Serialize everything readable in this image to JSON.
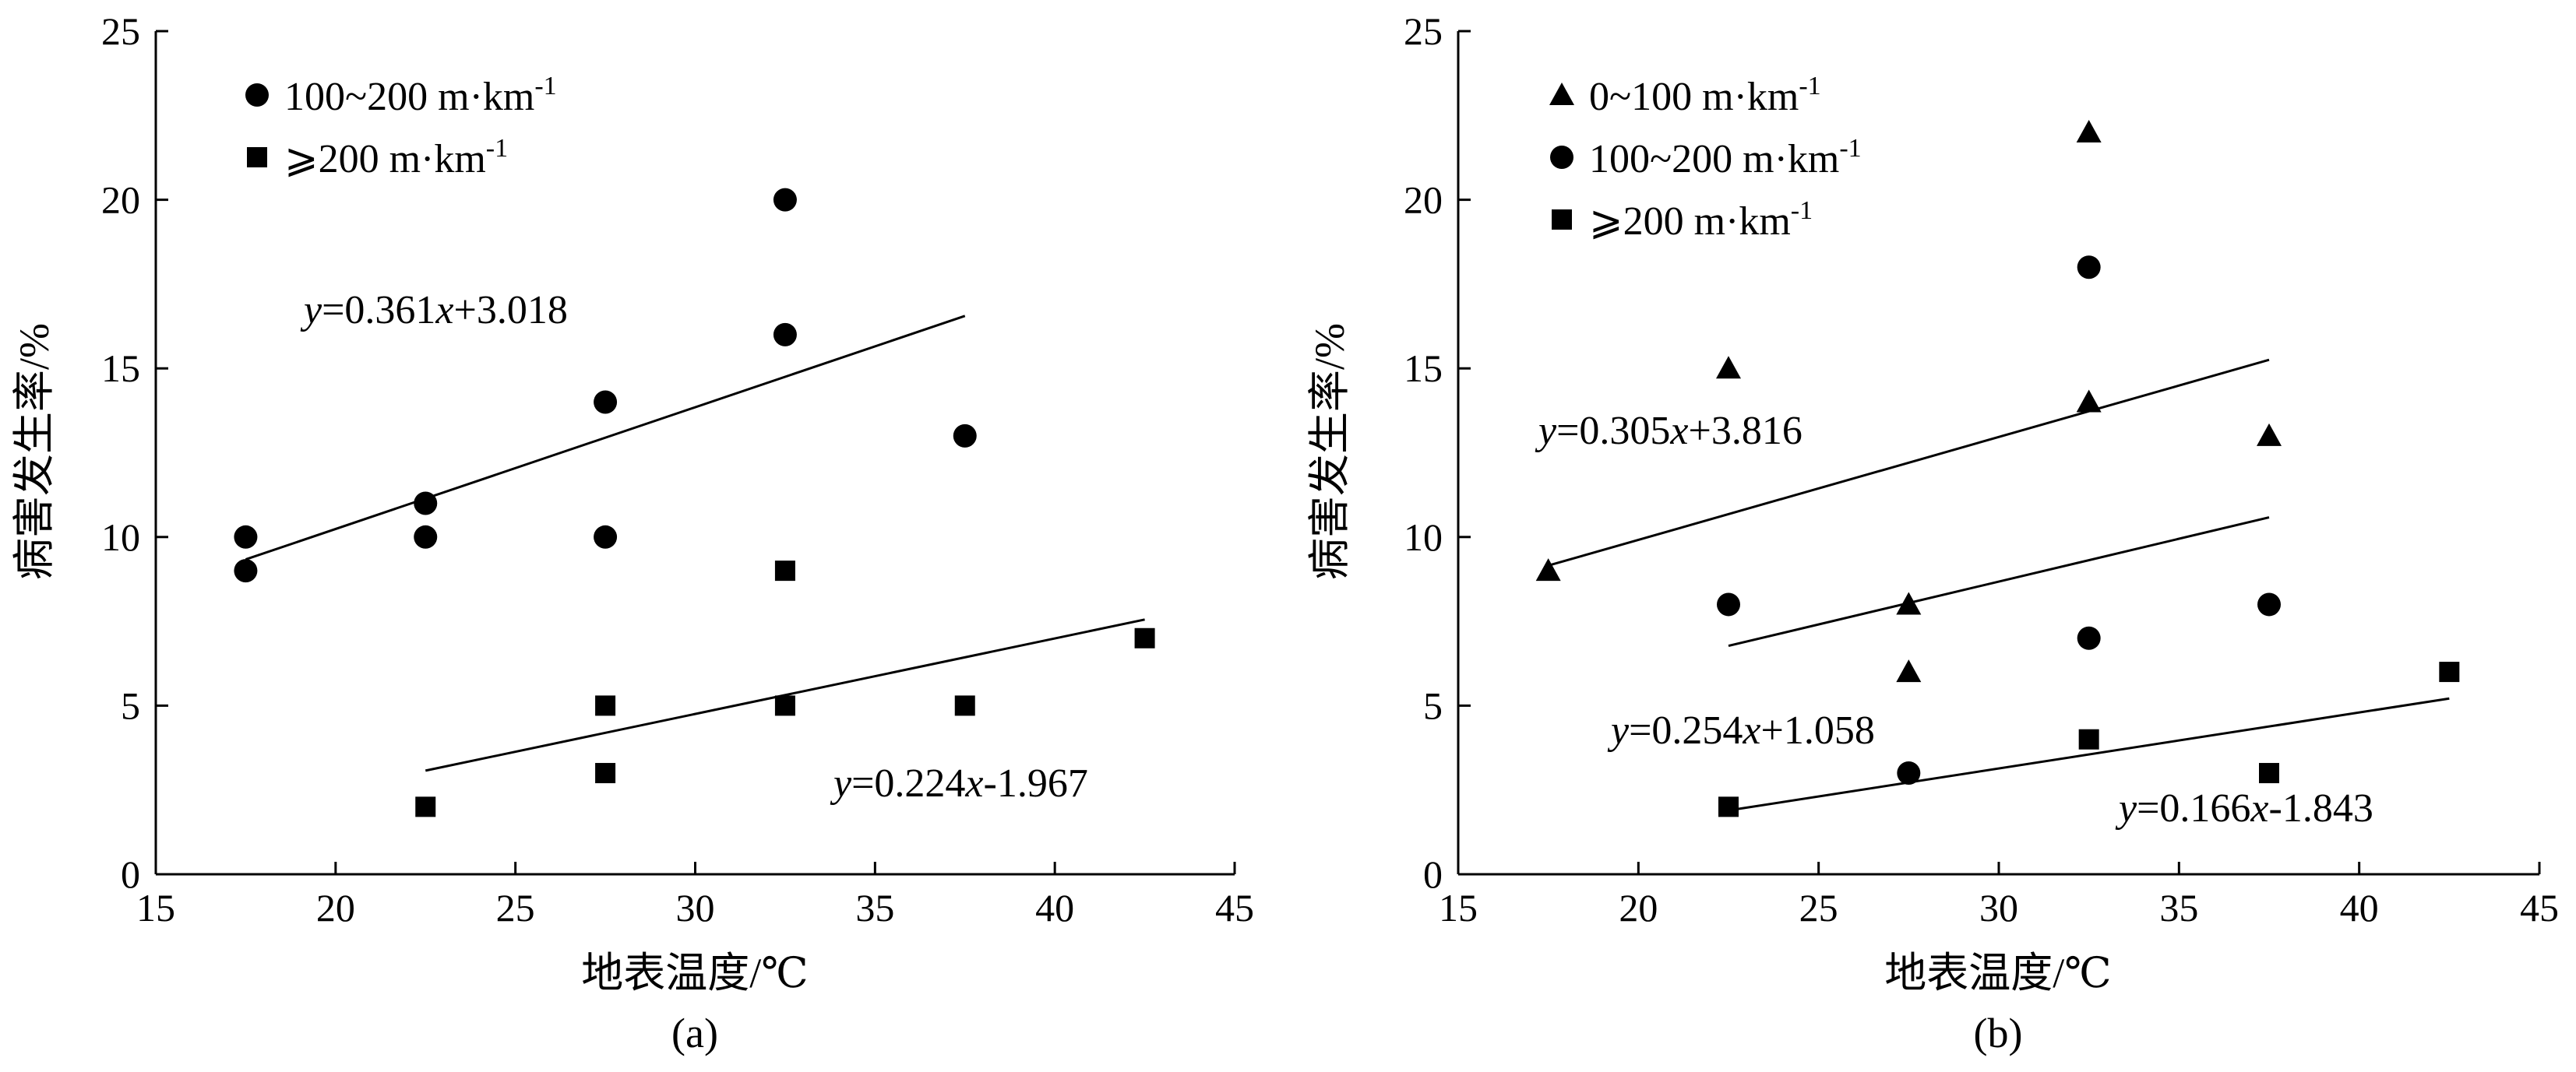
{
  "chart_data": [
    {
      "type": "scatter",
      "panel_label": "(a)",
      "xlabel": "地表温度/℃",
      "ylabel": "病害发生率/%",
      "xlim": [
        15,
        45
      ],
      "ylim": [
        0,
        25
      ],
      "xticks": [
        "15",
        "20",
        "25",
        "30",
        "35",
        "40",
        "45"
      ],
      "yticks": [
        "0",
        "5",
        "10",
        "15",
        "20",
        "25"
      ],
      "grid": false,
      "legend_position": "top-left",
      "series": [
        {
          "name": "100~200 m·km⁻¹",
          "marker": "circle",
          "points": [
            [
              17.5,
              10
            ],
            [
              17.5,
              9
            ],
            [
              22.5,
              11
            ],
            [
              22.5,
              10
            ],
            [
              27.5,
              14
            ],
            [
              27.5,
              10
            ],
            [
              32.5,
              20
            ],
            [
              32.5,
              16
            ],
            [
              37.5,
              13
            ]
          ],
          "fit": {
            "equation": "y=0.361x+3.018",
            "slope": 0.361,
            "intercept": 3.018,
            "x_range": [
              17.5,
              37.5
            ]
          }
        },
        {
          "name": "⩾200 m·km⁻¹",
          "marker": "square",
          "points": [
            [
              22.5,
              2
            ],
            [
              27.5,
              5
            ],
            [
              27.5,
              3
            ],
            [
              32.5,
              9
            ],
            [
              32.5,
              5
            ],
            [
              37.5,
              5
            ],
            [
              42.5,
              7
            ]
          ],
          "fit": {
            "equation": "y=0.224x-1.967",
            "slope": 0.224,
            "intercept": -1.967,
            "x_range": [
              22.5,
              42.5
            ]
          }
        }
      ]
    },
    {
      "type": "scatter",
      "panel_label": "(b)",
      "xlabel": "地表温度/℃",
      "ylabel": "病害发生率/%",
      "xlim": [
        15,
        45
      ],
      "ylim": [
        0,
        25
      ],
      "xticks": [
        "15",
        "20",
        "25",
        "30",
        "35",
        "40",
        "45"
      ],
      "yticks": [
        "0",
        "5",
        "10",
        "15",
        "20",
        "25"
      ],
      "grid": false,
      "legend_position": "top-left",
      "series": [
        {
          "name": "0~100 m·km⁻¹",
          "marker": "triangle",
          "points": [
            [
              17.5,
              9
            ],
            [
              22.5,
              15
            ],
            [
              27.5,
              8
            ],
            [
              27.5,
              6
            ],
            [
              32.5,
              22
            ],
            [
              32.5,
              14
            ],
            [
              37.5,
              13
            ]
          ],
          "fit": {
            "equation": "y=0.305x+3.816",
            "slope": 0.305,
            "intercept": 3.816,
            "x_range": [
              17.5,
              37.5
            ]
          }
        },
        {
          "name": "100~200 m·km⁻¹",
          "marker": "circle",
          "points": [
            [
              22.5,
              8
            ],
            [
              27.5,
              3
            ],
            [
              32.5,
              18
            ],
            [
              32.5,
              7
            ],
            [
              37.5,
              8
            ]
          ],
          "fit": {
            "equation": "y=0.254x+1.058",
            "slope": 0.254,
            "intercept": 1.058,
            "x_range": [
              22.5,
              37.5
            ]
          }
        },
        {
          "name": "⩾200 m·km⁻¹",
          "marker": "square",
          "points": [
            [
              22.5,
              2
            ],
            [
              32.5,
              4
            ],
            [
              37.5,
              3
            ],
            [
              42.5,
              6
            ]
          ],
          "fit": {
            "equation": "y=0.166x-1.843",
            "slope": 0.166,
            "intercept": -1.843,
            "x_range": [
              22.5,
              42.5
            ]
          }
        }
      ]
    }
  ]
}
